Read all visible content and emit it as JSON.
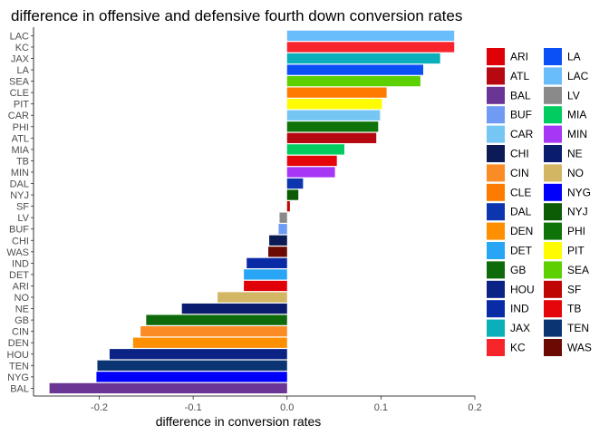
{
  "chart_data": {
    "type": "bar",
    "orientation": "horizontal",
    "title": "difference in offensive and defensive fourth down conversion rates",
    "xlabel": "difference in conversion rates",
    "ylabel": "",
    "xlim": [
      -0.27,
      0.2
    ],
    "xticks": [
      -0.2,
      -0.1,
      0.0,
      0.1,
      0.2
    ],
    "xtick_labels": [
      "-0.2",
      "-0.1",
      "0.0",
      "0.1",
      "0.2"
    ],
    "grid": false,
    "legend_position": "right",
    "categories": [
      "LAC",
      "KC",
      "JAX",
      "LA",
      "SEA",
      "CLE",
      "PIT",
      "CAR",
      "PHI",
      "ATL",
      "MIA",
      "TB",
      "MIN",
      "DAL",
      "NYJ",
      "SF",
      "LV",
      "BUF",
      "CHI",
      "WAS",
      "IND",
      "DET",
      "ARI",
      "NO",
      "NE",
      "GB",
      "CIN",
      "DEN",
      "HOU",
      "TEN",
      "NYG",
      "BAL"
    ],
    "values": [
      0.178,
      0.178,
      0.163,
      0.145,
      0.142,
      0.106,
      0.101,
      0.099,
      0.097,
      0.095,
      0.061,
      0.053,
      0.051,
      0.017,
      0.012,
      0.003,
      -0.008,
      -0.009,
      -0.019,
      -0.02,
      -0.043,
      -0.046,
      -0.046,
      -0.074,
      -0.112,
      -0.15,
      -0.156,
      -0.164,
      -0.189,
      -0.202,
      -0.203,
      -0.253
    ],
    "colors": {
      "ARI": "#E00008",
      "ATL": "#B60810",
      "BAL": "#6A3594",
      "BUF": "#6F9BF5",
      "CAR": "#76C6F4",
      "CHI": "#0C1A55",
      "CIN": "#FB8B24",
      "CLE": "#FF7B00",
      "DAL": "#0D35B0",
      "DEN": "#FD8F00",
      "DET": "#28A5F5",
      "GB": "#0F6A0C",
      "HOU": "#0B2384",
      "IND": "#0A2BA6",
      "JAX": "#0AAFBA",
      "KC": "#F8242C",
      "LA": "#0A50F5",
      "LAC": "#6ABDFB",
      "LV": "#8A8A8A",
      "MIA": "#00CC60",
      "MIN": "#A637F5",
      "NE": "#0A1C6E",
      "NO": "#D3B664",
      "NYG": "#0000FB",
      "NYJ": "#0C5B05",
      "PHI": "#0E7308",
      "PIT": "#FFFB00",
      "SEA": "#5CD000",
      "SF": "#C00602",
      "TB": "#E4060B",
      "TEN": "#0B3572",
      "WAS": "#6A0A02"
    },
    "legend": {
      "columns": [
        [
          "ARI",
          "ATL",
          "BAL",
          "BUF",
          "CAR",
          "CHI",
          "CIN",
          "CLE",
          "DAL",
          "DEN",
          "DET",
          "GB",
          "HOU",
          "IND",
          "JAX",
          "KC"
        ],
        [
          "LA",
          "LAC",
          "LV",
          "MIA",
          "MIN",
          "NE",
          "NO",
          "NYG",
          "NYJ",
          "PHI",
          "PIT",
          "SEA",
          "SF",
          "TB",
          "TEN",
          "WAS"
        ]
      ]
    }
  }
}
